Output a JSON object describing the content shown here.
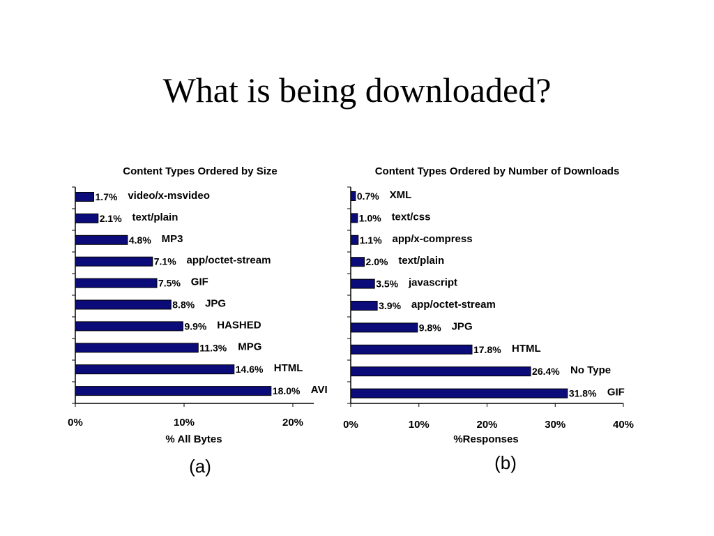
{
  "slide": {
    "title": "What is being downloaded?"
  },
  "colors": {
    "bar": "#0B0B7A",
    "bar_border": "#000000",
    "axis": "#000000"
  },
  "chart_data": [
    {
      "type": "bar",
      "orientation": "horizontal",
      "title": "Content Types Ordered by Size",
      "xlabel": "% All Bytes",
      "ylabel": "",
      "panel_label": "(a)",
      "xlim": [
        0,
        22
      ],
      "xticks": [
        0,
        10,
        20
      ],
      "xtick_labels": [
        "0%",
        "10%",
        "20%"
      ],
      "grid": false,
      "legend": "none",
      "categories": [
        "video/x-msvideo",
        "text/plain",
        "MP3",
        "app/octet-stream",
        "GIF",
        "JPG",
        "HASHED",
        "MPG",
        "HTML",
        "AVI"
      ],
      "values": [
        1.7,
        2.1,
        4.8,
        7.1,
        7.5,
        8.8,
        9.9,
        11.3,
        14.6,
        18.0
      ],
      "value_labels": [
        "1.7%",
        "2.1%",
        "4.8%",
        "7.1%",
        "7.5%",
        "8.8%",
        "9.9%",
        "11.3%",
        "14.6%",
        "18.0%"
      ]
    },
    {
      "type": "bar",
      "orientation": "horizontal",
      "title": "Content Types Ordered by Number of Downloads",
      "xlabel": "%Responses",
      "ylabel": "",
      "panel_label": "(b)",
      "xlim": [
        0,
        40
      ],
      "xticks": [
        0,
        10,
        20,
        30,
        40
      ],
      "xtick_labels": [
        "0%",
        "10%",
        "20%",
        "30%",
        "40%"
      ],
      "grid": false,
      "legend": "none",
      "categories": [
        "XML",
        "text/css",
        "app/x-compress",
        "text/plain",
        "javascript",
        "app/octet-stream",
        "JPG",
        "HTML",
        "No Type",
        "GIF"
      ],
      "values": [
        0.7,
        1.0,
        1.1,
        2.0,
        3.5,
        3.9,
        9.8,
        17.8,
        26.4,
        31.8
      ],
      "value_labels": [
        "0.7%",
        "1.0%",
        "1.1%",
        "2.0%",
        "3.5%",
        "3.9%",
        "9.8%",
        "17.8%",
        "26.4%",
        "31.8%"
      ]
    }
  ]
}
